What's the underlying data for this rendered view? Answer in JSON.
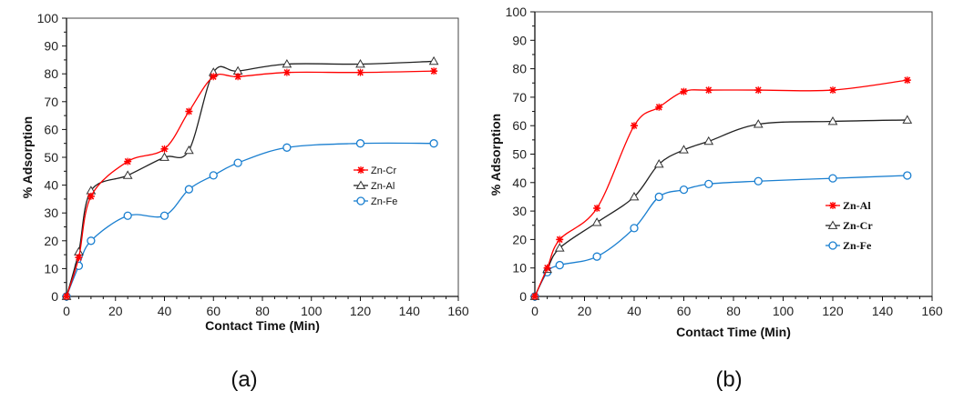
{
  "chart_data": [
    {
      "type": "line",
      "panel_label": "(a)",
      "title": "",
      "xlabel": "Contact Time (Min)",
      "ylabel": "% Adsorption",
      "xlim": [
        0,
        160
      ],
      "ylim": [
        0,
        100
      ],
      "xticks": [
        0,
        20,
        40,
        60,
        80,
        100,
        120,
        140,
        160
      ],
      "yticks": [
        0,
        10,
        20,
        30,
        40,
        50,
        60,
        70,
        80,
        90,
        100
      ],
      "grid": false,
      "legend_position": "center-right",
      "legend_style": "sans",
      "series": [
        {
          "name": "Zn-Cr",
          "color": "#ff0000",
          "marker": "star",
          "x": [
            0,
            5,
            10,
            25,
            40,
            50,
            60,
            70,
            90,
            120,
            150
          ],
          "y": [
            0,
            14,
            36,
            48.5,
            53,
            66.5,
            79,
            79,
            80.5,
            80.5,
            81
          ]
        },
        {
          "name": "Zn-Al",
          "color": "#222222",
          "marker": "triangle",
          "x": [
            0,
            5,
            10,
            25,
            40,
            50,
            60,
            70,
            90,
            120,
            150
          ],
          "y": [
            0,
            16,
            38,
            43.5,
            50,
            52.5,
            80.5,
            81,
            83.5,
            83.5,
            84.5
          ]
        },
        {
          "name": "Zn-Fe",
          "color": "#1a7fd0",
          "marker": "circle",
          "x": [
            0,
            5,
            10,
            25,
            40,
            50,
            60,
            70,
            90,
            120,
            150
          ],
          "y": [
            0,
            11,
            20,
            29,
            29,
            38.5,
            43.5,
            48,
            53.5,
            55,
            55
          ]
        }
      ]
    },
    {
      "type": "line",
      "panel_label": "(b)",
      "title": "",
      "xlabel": "Contact Time (Min)",
      "ylabel": "% Adsorption",
      "xlim": [
        0,
        160
      ],
      "ylim": [
        0,
        100
      ],
      "xticks": [
        0,
        20,
        40,
        60,
        80,
        100,
        120,
        140,
        160
      ],
      "yticks": [
        0,
        10,
        20,
        30,
        40,
        50,
        60,
        70,
        80,
        90,
        100
      ],
      "grid": false,
      "legend_position": "center-right",
      "legend_style": "serif",
      "series": [
        {
          "name": "Zn-Al",
          "color": "#ff0000",
          "marker": "star",
          "x": [
            0,
            5,
            10,
            25,
            40,
            50,
            60,
            70,
            90,
            120,
            150
          ],
          "y": [
            0,
            10,
            20,
            31,
            60,
            66.5,
            72,
            72.5,
            72.5,
            72.5,
            76
          ]
        },
        {
          "name": "Zn-Cr",
          "color": "#222222",
          "marker": "triangle",
          "x": [
            0,
            5,
            10,
            25,
            40,
            50,
            60,
            70,
            90,
            120,
            150
          ],
          "y": [
            0,
            9.5,
            17,
            26,
            35,
            46.5,
            51.5,
            54.5,
            60.5,
            61.5,
            62
          ]
        },
        {
          "name": "Zn-Fe",
          "color": "#1a7fd0",
          "marker": "circle",
          "x": [
            0,
            5,
            10,
            25,
            40,
            50,
            60,
            70,
            90,
            120,
            150
          ],
          "y": [
            0,
            8.5,
            11,
            14,
            24,
            35,
            37.5,
            39.5,
            40.5,
            41.5,
            42.5
          ]
        }
      ]
    }
  ]
}
